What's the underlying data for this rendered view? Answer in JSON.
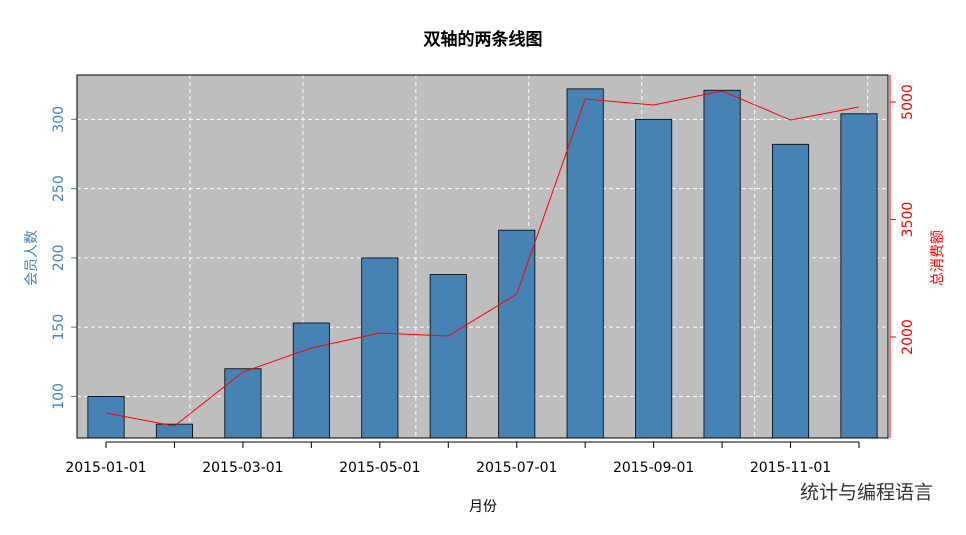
{
  "chart_data": {
    "type": "bar-line",
    "title": "双轴的两条线图",
    "x_label": "月份",
    "y_label": "会员人数",
    "y2_label": "总消费额",
    "watermark": "统计与编程语言",
    "categories": [
      "2015-01-01",
      null,
      "2015-03-01",
      null,
      "2015-05-01",
      null,
      "2015-07-01",
      null,
      "2015-09-01",
      null,
      "2015-11-01",
      null
    ],
    "series": [
      {
        "name": "会员人数",
        "color": "#4682b4",
        "type": "bar",
        "values": [
          100,
          80,
          120,
          153,
          200,
          188,
          220,
          322,
          300,
          321,
          282,
          304
        ]
      },
      {
        "name": "总消费额",
        "color": "#ff0000",
        "type": "line",
        "axis": "y2",
        "values": [
          1030,
          864,
          1553,
          1860,
          2051,
          2013,
          2549,
          5038,
          4962,
          5140,
          4770,
          4936
        ]
      }
    ],
    "ylim": [
      70,
      332
    ],
    "yticks": [
      100,
      150,
      200,
      250,
      300
    ],
    "y2lim": [
      711,
      5345
    ],
    "y2ticks": [
      2000,
      3500,
      5000
    ],
    "grid": true
  }
}
